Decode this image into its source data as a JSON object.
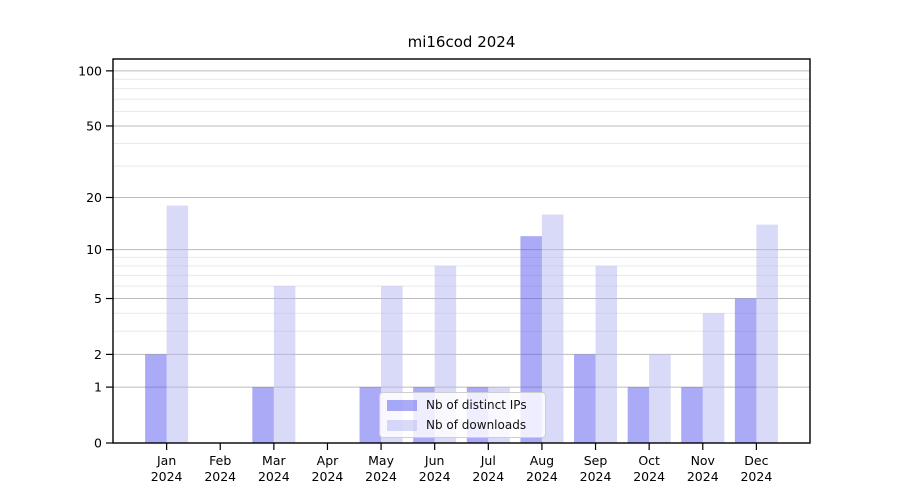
{
  "chart_data": {
    "type": "bar",
    "title": "mi16cod 2024",
    "categories": [
      "Jan",
      "Feb",
      "Mar",
      "Apr",
      "May",
      "Jun",
      "Jul",
      "Aug",
      "Sep",
      "Oct",
      "Nov",
      "Dec"
    ],
    "category_year": "2024",
    "series": [
      {
        "name": "Nb of distinct IPs",
        "color": "#5656f0",
        "fill_opacity": 0.5,
        "values": [
          2,
          0,
          1,
          0,
          1,
          1,
          1,
          12,
          2,
          1,
          1,
          5
        ]
      },
      {
        "name": "Nb of downloads",
        "color": "#b4b4f2",
        "fill_opacity": 0.5,
        "values": [
          18,
          0,
          6,
          0,
          6,
          8,
          1,
          16,
          8,
          2,
          4,
          14
        ]
      }
    ],
    "xlabel": "",
    "ylabel": "",
    "y_scale": "log1p",
    "ylim": [
      0,
      116
    ],
    "y_ticks": [
      0,
      1,
      2,
      5,
      10,
      20,
      50,
      100
    ],
    "y_minor_ticks": [
      3,
      4,
      6,
      7,
      8,
      9,
      30,
      40,
      60,
      70,
      80,
      90
    ],
    "grid": "on",
    "legend_position": "lower center",
    "colors": {
      "bar_distinct_ips_rendered": "#aaaaf8",
      "bar_downloads_rendered": "#d9d9f9",
      "major_gridline": "#bbbbbb",
      "minor_gridline": "#e9e9e9",
      "axis_frame": "#000000"
    }
  }
}
